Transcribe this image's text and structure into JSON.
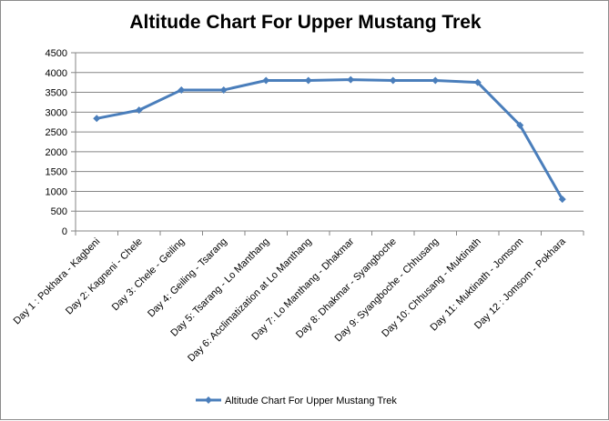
{
  "chart_data": {
    "type": "line",
    "title": "Altitude Chart For Upper Mustang Trek",
    "categories": [
      "Day 1 : Pokhara - Kagbeni",
      "Day 2: Kagneni - Chele",
      "Day 3: Chele - Geiling",
      "Day 4: Geiling - Tsarang",
      "Day 5: Tsarang - Lo Manthang",
      "Day 6: Acclimatization at Lo Manthang",
      "Day 7: Lo Manthang - Dhakmar",
      "Day 8: Dhakmar - Syangboche",
      "Day 9: Syangboche - Chhusang",
      "Day 10: Chhusang - Muktinath",
      "Day 11: Muktinath - Jomsom",
      "Day 12 : Jomsom - Pokhara"
    ],
    "series": [
      {
        "name": "Altitude Chart For Upper Mustang Trek",
        "values": [
          2840,
          3050,
          3560,
          3560,
          3800,
          3800,
          3820,
          3800,
          3800,
          3750,
          2670,
          800
        ]
      }
    ],
    "ylim": [
      0,
      4500
    ],
    "yticks": [
      "0",
      "500",
      "1000",
      "1500",
      "2000",
      "2500",
      "3000",
      "3500",
      "4000",
      "4500"
    ],
    "xlabel": "",
    "ylabel": "",
    "grid": true,
    "legend": "bottom",
    "color": "#4a7ebb"
  }
}
